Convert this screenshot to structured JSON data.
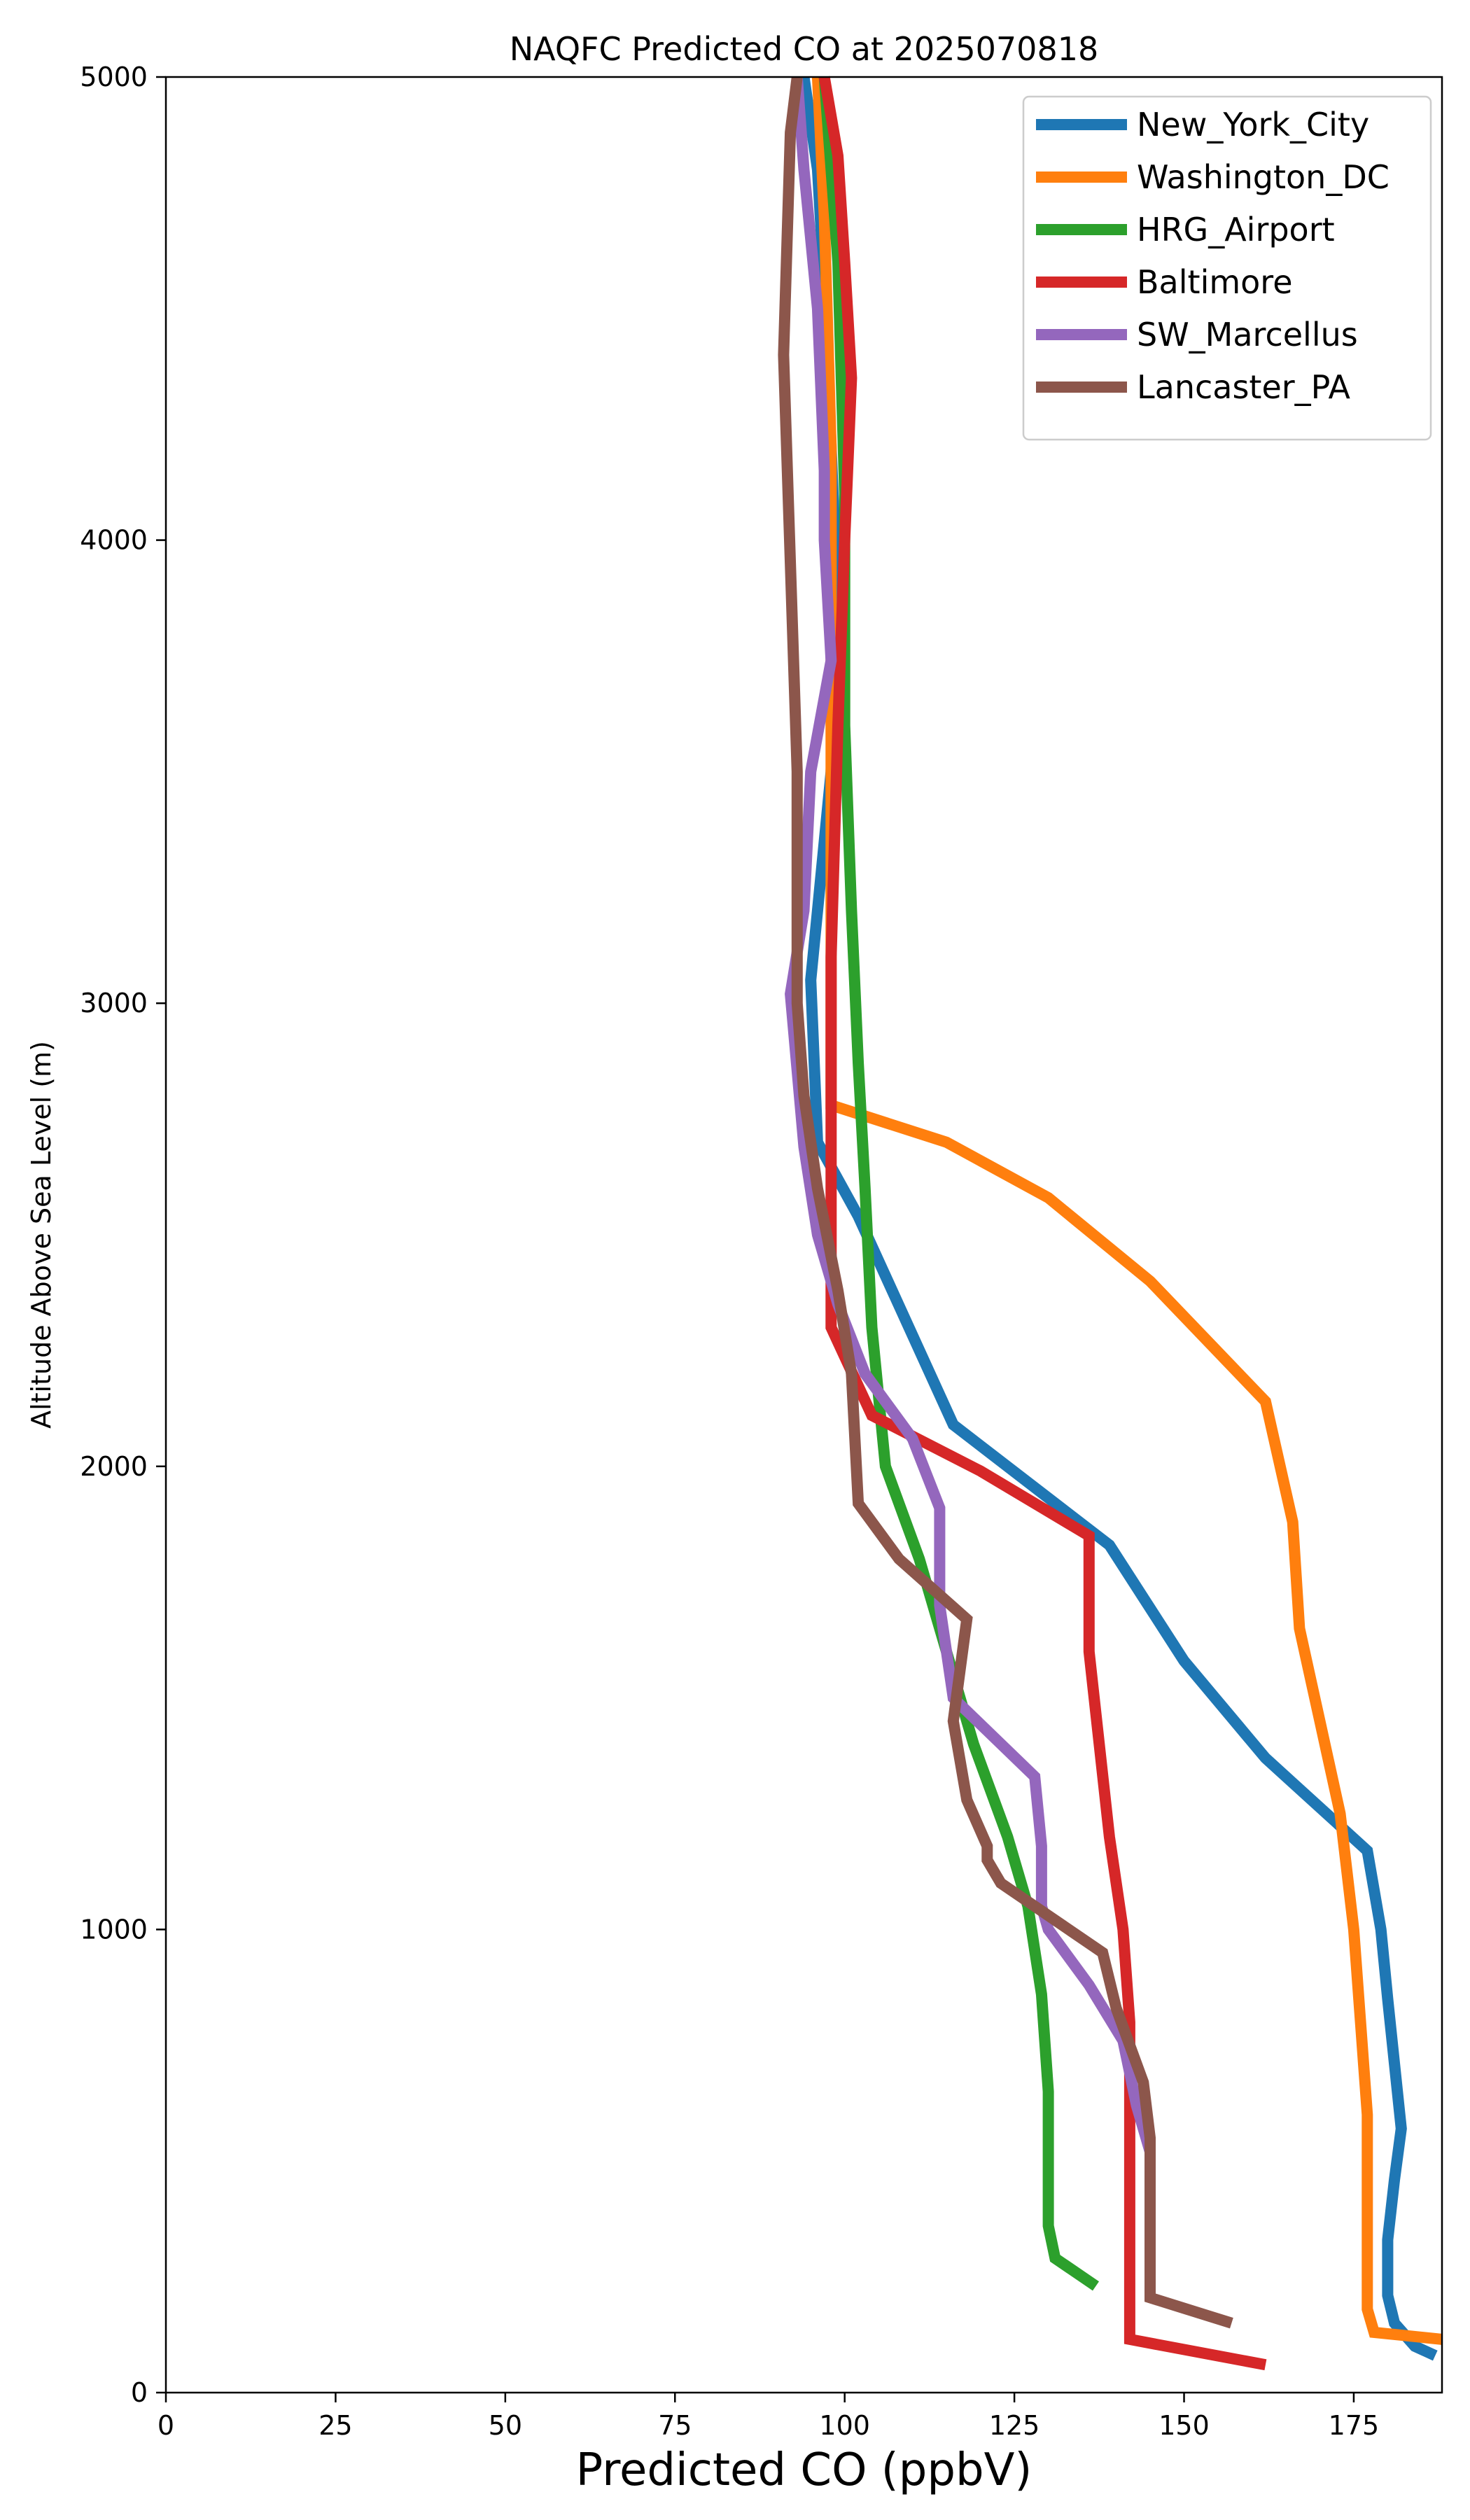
{
  "chart_data": {
    "type": "line",
    "title": "NAQFC Predicted CO at 2025070818",
    "xlabel": "Predicted CO (ppbV)",
    "ylabel": "Altitude Above Sea Level (m)",
    "xlim": [
      0,
      188
    ],
    "ylim": [
      0,
      5000
    ],
    "xticks": [
      0,
      25,
      50,
      75,
      100,
      125,
      150,
      175
    ],
    "yticks": [
      0,
      1000,
      2000,
      3000,
      4000,
      5000
    ],
    "grid": false,
    "legend": "upper right",
    "series": [
      {
        "name": "New_York_City",
        "color": "#1f77b4",
        "points": [
          [
            187,
            80
          ],
          [
            184,
            100
          ],
          [
            181,
            150
          ],
          [
            180,
            210
          ],
          [
            180,
            330
          ],
          [
            181,
            460
          ],
          [
            182,
            570
          ],
          [
            181,
            710
          ],
          [
            180,
            850
          ],
          [
            179,
            1000
          ],
          [
            177,
            1170
          ],
          [
            162,
            1370
          ],
          [
            150,
            1580
          ],
          [
            139,
            1830
          ],
          [
            116,
            2090
          ],
          [
            102,
            2540
          ],
          [
            96,
            2700
          ],
          [
            95,
            3050
          ],
          [
            98,
            3500
          ],
          [
            99,
            3850
          ],
          [
            98,
            4200
          ],
          [
            97,
            4550
          ],
          [
            96,
            4800
          ],
          [
            94,
            5000
          ]
        ]
      },
      {
        "name": "Washington_DC",
        "color": "#ff7f0e",
        "points": [
          [
            188,
            115
          ],
          [
            178,
            130
          ],
          [
            177,
            180
          ],
          [
            177,
            400
          ],
          [
            177,
            600
          ],
          [
            176,
            800
          ],
          [
            175,
            1000
          ],
          [
            173,
            1250
          ],
          [
            170,
            1450
          ],
          [
            167,
            1650
          ],
          [
            166,
            1880
          ],
          [
            162,
            2140
          ],
          [
            145,
            2400
          ],
          [
            130,
            2580
          ],
          [
            115,
            2700
          ],
          [
            98,
            2780
          ],
          [
            98,
            3200
          ],
          [
            98,
            3700
          ],
          [
            98,
            4200
          ],
          [
            97,
            4700
          ],
          [
            96,
            5000
          ]
        ]
      },
      {
        "name": "HRG_Airport",
        "color": "#2ca02c",
        "points": [
          [
            137,
            230
          ],
          [
            131,
            290
          ],
          [
            130,
            360
          ],
          [
            130,
            650
          ],
          [
            129,
            860
          ],
          [
            127,
            1050
          ],
          [
            124,
            1200
          ],
          [
            119,
            1400
          ],
          [
            115,
            1600
          ],
          [
            111,
            1800
          ],
          [
            106,
            2000
          ],
          [
            104,
            2300
          ],
          [
            103,
            2600
          ],
          [
            102,
            2870
          ],
          [
            101,
            3200
          ],
          [
            100,
            3600
          ],
          [
            100,
            4100
          ],
          [
            99,
            4600
          ],
          [
            97,
            5000
          ]
        ]
      },
      {
        "name": "Baltimore",
        "color": "#d62728",
        "points": [
          [
            162,
            60
          ],
          [
            142,
            115
          ],
          [
            142,
            300
          ],
          [
            142,
            600
          ],
          [
            142,
            800
          ],
          [
            141,
            1000
          ],
          [
            139,
            1200
          ],
          [
            136,
            1600
          ],
          [
            136,
            1850
          ],
          [
            120,
            1990
          ],
          [
            104,
            2110
          ],
          [
            98,
            2300
          ],
          [
            98,
            2700
          ],
          [
            98,
            3100
          ],
          [
            99,
            3600
          ],
          [
            100,
            4000
          ],
          [
            101,
            4350
          ],
          [
            100,
            4600
          ],
          [
            99,
            4830
          ],
          [
            97,
            5000
          ]
        ]
      },
      {
        "name": "SW_Marcellus",
        "color": "#9467bd",
        "points": [
          [
            145,
            420
          ],
          [
            145,
            520
          ],
          [
            143,
            620
          ],
          [
            141,
            760
          ],
          [
            136,
            880
          ],
          [
            130,
            1000
          ],
          [
            129,
            1050
          ],
          [
            129,
            1180
          ],
          [
            128,
            1330
          ],
          [
            116,
            1500
          ],
          [
            115,
            1600
          ],
          [
            114,
            1700
          ],
          [
            114,
            1910
          ],
          [
            110,
            2060
          ],
          [
            103,
            2200
          ],
          [
            99,
            2350
          ],
          [
            96,
            2500
          ],
          [
            94,
            2690
          ],
          [
            92,
            3020
          ],
          [
            94,
            3200
          ],
          [
            95,
            3500
          ],
          [
            98,
            3740
          ],
          [
            97,
            4000
          ],
          [
            97,
            4150
          ],
          [
            96,
            4500
          ],
          [
            94,
            4800
          ],
          [
            93,
            5000
          ]
        ]
      },
      {
        "name": "Lancaster_PA",
        "color": "#8c564b",
        "points": [
          [
            157,
            150
          ],
          [
            145,
            205
          ],
          [
            145,
            350
          ],
          [
            145,
            450
          ],
          [
            145,
            550
          ],
          [
            144,
            670
          ],
          [
            140,
            830
          ],
          [
            138,
            950
          ],
          [
            123,
            1100
          ],
          [
            121,
            1150
          ],
          [
            121,
            1180
          ],
          [
            118,
            1280
          ],
          [
            116,
            1450
          ],
          [
            118,
            1670
          ],
          [
            108,
            1800
          ],
          [
            102,
            1920
          ],
          [
            101,
            2200
          ],
          [
            99,
            2380
          ],
          [
            96,
            2600
          ],
          [
            94,
            2800
          ],
          [
            93,
            3000
          ],
          [
            93,
            3500
          ],
          [
            92,
            3950
          ],
          [
            91,
            4400
          ],
          [
            92,
            4880
          ],
          [
            93,
            5000
          ]
        ]
      }
    ]
  }
}
